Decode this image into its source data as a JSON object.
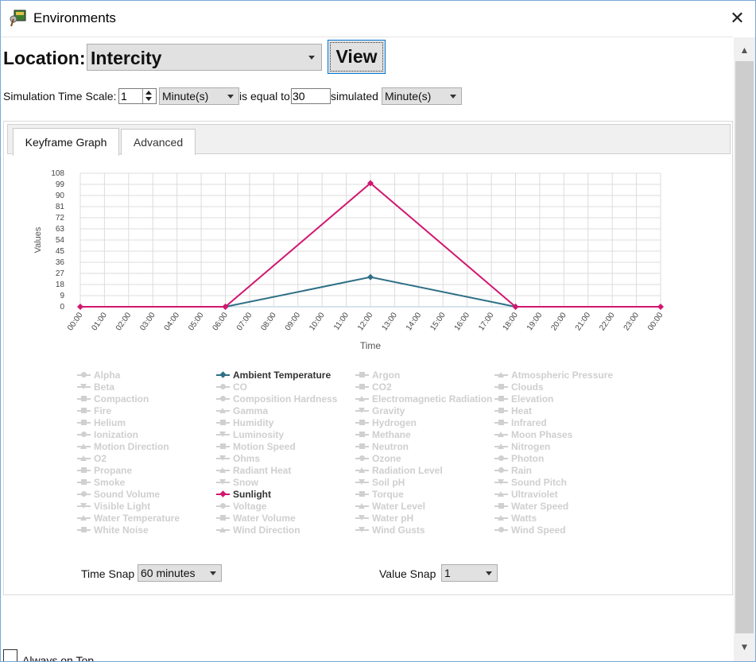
{
  "window": {
    "title": "Environments",
    "close_icon": "close-icon",
    "app_icon": "environments-app-icon"
  },
  "location": {
    "label": "Location:",
    "value": "Intercity",
    "view_button": "View"
  },
  "time_scale": {
    "label": "Simulation Time Scale:",
    "amount": "1",
    "unit": "Minute(s)",
    "equal_text": "is equal to",
    "simulated_amount": "30",
    "simulated_text": "simulated",
    "simulated_unit": "Minute(s)"
  },
  "tabs": [
    {
      "label": "Keyframe Graph",
      "active": true
    },
    {
      "label": "Advanced",
      "active": false
    }
  ],
  "chart_data": {
    "type": "line",
    "xlabel": "Time",
    "ylabel": "Values",
    "x_ticks": [
      "00:00",
      "01:00",
      "02:00",
      "03:00",
      "04:00",
      "05:00",
      "06:00",
      "07:00",
      "08:00",
      "09:00",
      "10:00",
      "11:00",
      "12:00",
      "13:00",
      "14:00",
      "15:00",
      "16:00",
      "17:00",
      "18:00",
      "19:00",
      "20:00",
      "21:00",
      "22:00",
      "23:00",
      "00:00"
    ],
    "y_ticks": [
      0,
      9,
      18,
      27,
      36,
      45,
      54,
      63,
      72,
      81,
      90,
      99,
      108
    ],
    "ylim": [
      0,
      108
    ],
    "xlim": [
      0,
      24
    ],
    "grid": true,
    "series": [
      {
        "name": "Ambient Temperature",
        "color": "#2e6f86",
        "marker": "diamond",
        "points": [
          [
            6,
            0
          ],
          [
            12,
            24
          ],
          [
            18,
            0
          ]
        ]
      },
      {
        "name": "Sunlight",
        "color": "#d1176f",
        "marker": "diamond",
        "points": [
          [
            0,
            0
          ],
          [
            6,
            0
          ],
          [
            12,
            100
          ],
          [
            18,
            0
          ],
          [
            24,
            0
          ]
        ]
      }
    ]
  },
  "legend": {
    "inactive_color": "#d0d0d0",
    "active_color": "#333333",
    "columns": [
      [
        {
          "label": "Alpha",
          "marker": "circle",
          "active": false
        },
        {
          "label": "Beta",
          "marker": "triangle-down",
          "active": false
        },
        {
          "label": "Compaction",
          "marker": "square",
          "active": false
        },
        {
          "label": "Fire",
          "marker": "square",
          "active": false
        },
        {
          "label": "Helium",
          "marker": "square",
          "active": false
        },
        {
          "label": "Ionization",
          "marker": "circle",
          "active": false
        },
        {
          "label": "Motion Direction",
          "marker": "triangle",
          "active": false
        },
        {
          "label": "O2",
          "marker": "triangle",
          "active": false
        },
        {
          "label": "Propane",
          "marker": "square",
          "active": false
        },
        {
          "label": "Smoke",
          "marker": "square",
          "active": false
        },
        {
          "label": "Sound Volume",
          "marker": "circle",
          "active": false
        },
        {
          "label": "Visible Light",
          "marker": "triangle-down",
          "active": false
        },
        {
          "label": "Water Temperature",
          "marker": "triangle",
          "active": false
        },
        {
          "label": "White Noise",
          "marker": "square",
          "active": false
        }
      ],
      [
        {
          "label": "Ambient Temperature",
          "marker": "diamond",
          "active": true,
          "color": "#2e6f86"
        },
        {
          "label": "CO",
          "marker": "circle",
          "active": false
        },
        {
          "label": "Composition Hardness",
          "marker": "circle",
          "active": false
        },
        {
          "label": "Gamma",
          "marker": "triangle",
          "active": false
        },
        {
          "label": "Humidity",
          "marker": "square",
          "active": false
        },
        {
          "label": "Luminosity",
          "marker": "triangle-down",
          "active": false
        },
        {
          "label": "Motion Speed",
          "marker": "square",
          "active": false
        },
        {
          "label": "Ohms",
          "marker": "triangle-down",
          "active": false
        },
        {
          "label": "Radiant Heat",
          "marker": "triangle",
          "active": false
        },
        {
          "label": "Snow",
          "marker": "triangle-down",
          "active": false
        },
        {
          "label": "Sunlight",
          "marker": "diamond",
          "active": true,
          "color": "#d1176f"
        },
        {
          "label": "Voltage",
          "marker": "circle",
          "active": false
        },
        {
          "label": "Water Volume",
          "marker": "square",
          "active": false
        },
        {
          "label": "Wind Direction",
          "marker": "triangle",
          "active": false
        }
      ],
      [
        {
          "label": "Argon",
          "marker": "square",
          "active": false
        },
        {
          "label": "CO2",
          "marker": "square",
          "active": false
        },
        {
          "label": "Electromagnetic Radiation",
          "marker": "triangle",
          "active": false
        },
        {
          "label": "Gravity",
          "marker": "triangle-down",
          "active": false
        },
        {
          "label": "Hydrogen",
          "marker": "square",
          "active": false
        },
        {
          "label": "Methane",
          "marker": "square",
          "active": false
        },
        {
          "label": "Neutron",
          "marker": "square",
          "active": false
        },
        {
          "label": "Ozone",
          "marker": "circle",
          "active": false
        },
        {
          "label": "Radiation Level",
          "marker": "triangle",
          "active": false
        },
        {
          "label": "Soil pH",
          "marker": "triangle-down",
          "active": false
        },
        {
          "label": "Torque",
          "marker": "square",
          "active": false
        },
        {
          "label": "Water Level",
          "marker": "triangle",
          "active": false
        },
        {
          "label": "Water pH",
          "marker": "triangle-down",
          "active": false
        },
        {
          "label": "Wind Gusts",
          "marker": "triangle-down",
          "active": false
        }
      ],
      [
        {
          "label": "Atmospheric Pressure",
          "marker": "triangle",
          "active": false
        },
        {
          "label": "Clouds",
          "marker": "square",
          "active": false
        },
        {
          "label": "Elevation",
          "marker": "square",
          "active": false
        },
        {
          "label": "Heat",
          "marker": "square",
          "active": false
        },
        {
          "label": "Infrared",
          "marker": "square",
          "active": false
        },
        {
          "label": "Moon Phases",
          "marker": "triangle",
          "active": false
        },
        {
          "label": "Nitrogen",
          "marker": "triangle",
          "active": false
        },
        {
          "label": "Photon",
          "marker": "circle",
          "active": false
        },
        {
          "label": "Rain",
          "marker": "circle",
          "active": false
        },
        {
          "label": "Sound Pitch",
          "marker": "triangle-down",
          "active": false
        },
        {
          "label": "Ultraviolet",
          "marker": "triangle",
          "active": false
        },
        {
          "label": "Water Speed",
          "marker": "square",
          "active": false
        },
        {
          "label": "Watts",
          "marker": "triangle",
          "active": false
        },
        {
          "label": "Wind Speed",
          "marker": "circle",
          "active": false
        }
      ]
    ]
  },
  "snap": {
    "time_label": "Time Snap",
    "time_value": "60 minutes",
    "value_label": "Value Snap",
    "value_value": "1"
  },
  "always_on_top": {
    "label": "Always on Top",
    "checked": false
  },
  "scrollbar": {
    "up_icon": "scroll-up-arrow-icon",
    "down_icon": "scroll-down-arrow-icon"
  }
}
